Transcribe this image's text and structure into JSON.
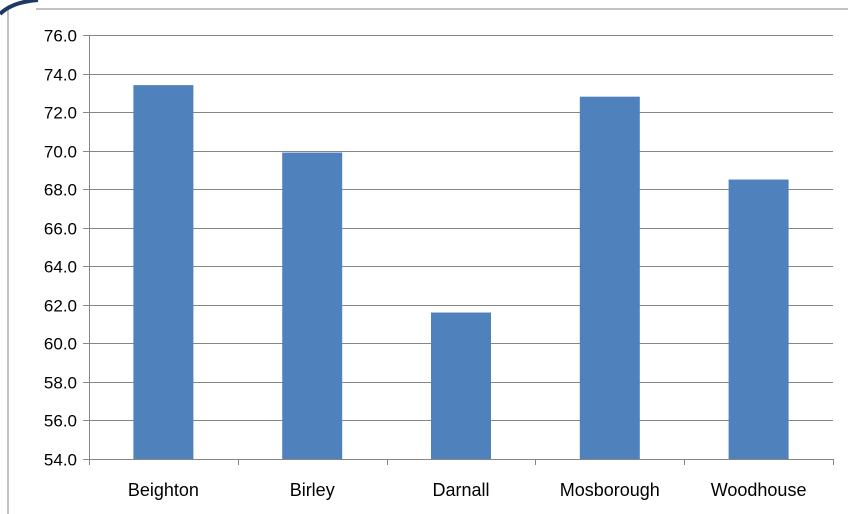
{
  "chart_data": {
    "type": "bar",
    "categories": [
      "Beighton",
      "Birley",
      "Darnall",
      "Mosborough",
      "Woodhouse"
    ],
    "values": [
      73.4,
      69.9,
      61.6,
      72.8,
      68.5
    ],
    "title": "",
    "xlabel": "",
    "ylabel": "",
    "ylim": [
      54.0,
      76.0
    ],
    "ytick_step": 2.0,
    "ytick_labels": [
      "54.0",
      "56.0",
      "58.0",
      "60.0",
      "62.0",
      "64.0",
      "66.0",
      "68.0",
      "70.0",
      "72.0",
      "74.0",
      "76.0"
    ],
    "grid": true,
    "legend": "none",
    "bar_color": "#4f81bd",
    "grid_color": "#868686",
    "axis_color": "#868686"
  }
}
